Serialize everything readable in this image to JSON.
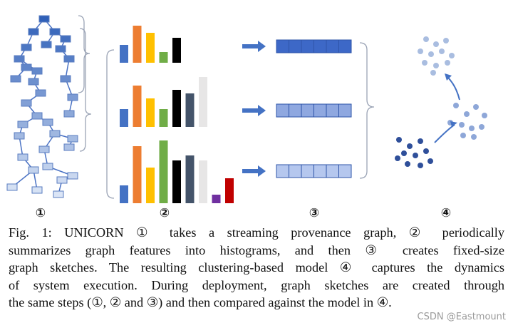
{
  "figure": {
    "steps": [
      "①",
      "②",
      "③",
      "④"
    ],
    "caption": {
      "lines": [
        "Fig. 1: UNICORN ① takes a streaming provenance graph, ② periodically",
        "summarizes graph features into histograms, and then ③ creates fixed-size",
        "graph sketches. The resulting clustering-based model ④ captures the dynamics",
        "of system execution. During deployment, graph sketches are created through",
        "the same steps (①, ② and ③) and then compared against the model in ④."
      ]
    },
    "watermark": "CSDN @Eastmount"
  }
}
